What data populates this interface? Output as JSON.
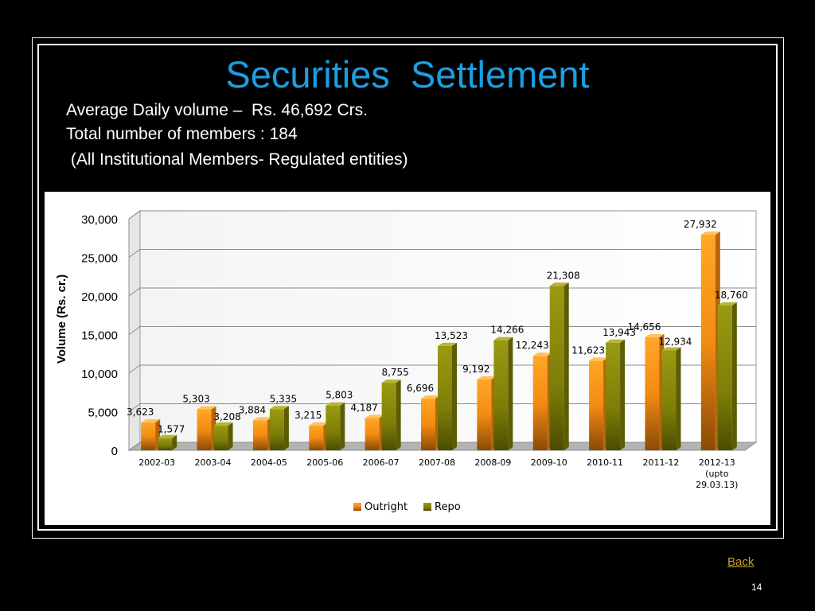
{
  "slide": {
    "title": "Securities  Settlement",
    "lines": [
      "Average Daily volume –  Rs. 46,692 Crs.",
      "Total number of members : 184",
      " (All Institutional Members- Regulated entities)"
    ],
    "back_label": "Back",
    "page_number": "14"
  },
  "chart_data": {
    "type": "bar",
    "categories": [
      "2002-03",
      "2003-04",
      "2004-05",
      "2005-06",
      "2006-07",
      "2007-08",
      "2008-09",
      "2009-10",
      "2010-11",
      "2011-12",
      "2012-13 (upto 29.03.13)"
    ],
    "category_lines": [
      [
        "2002-03"
      ],
      [
        "2003-04"
      ],
      [
        "2004-05"
      ],
      [
        "2005-06"
      ],
      [
        "2006-07"
      ],
      [
        "2007-08"
      ],
      [
        "2008-09"
      ],
      [
        "2009-10"
      ],
      [
        "2010-11"
      ],
      [
        "2011-12"
      ],
      [
        "2012-13",
        "(upto",
        "29.03.13)"
      ]
    ],
    "series": [
      {
        "name": "Outright",
        "values": [
          3623,
          5303,
          3884,
          3215,
          4187,
          6696,
          9192,
          12243,
          11623,
          14656,
          27932
        ],
        "labels": [
          "3,623",
          "5,303",
          "3,884",
          "3,215",
          "4,187",
          "6,696",
          "9,192",
          "12,243",
          "11,623",
          "14,656",
          "27,932"
        ]
      },
      {
        "name": "Repo",
        "values": [
          1577,
          3208,
          5335,
          5803,
          8755,
          13523,
          14266,
          21308,
          13943,
          12934,
          18760
        ],
        "labels": [
          "1,577",
          "3,208",
          "5,335",
          "5,803",
          "8,755",
          "13,523",
          "14,266",
          "21,308",
          "13,943",
          "12,934",
          "18,760"
        ]
      }
    ],
    "ylabel": "Volume (Rs. cr.)",
    "ylim": [
      0,
      30000
    ],
    "yticks": [
      0,
      5000,
      10000,
      15000,
      20000,
      25000,
      30000
    ],
    "ytick_labels": [
      "0",
      "5,000",
      "10,000",
      "15,000",
      "20,000",
      "25,000",
      "30,000"
    ],
    "grid": true,
    "legend_position": "bottom",
    "colors": {
      "Outright": "#f7931e",
      "Repo": "#8a8a0a"
    }
  }
}
